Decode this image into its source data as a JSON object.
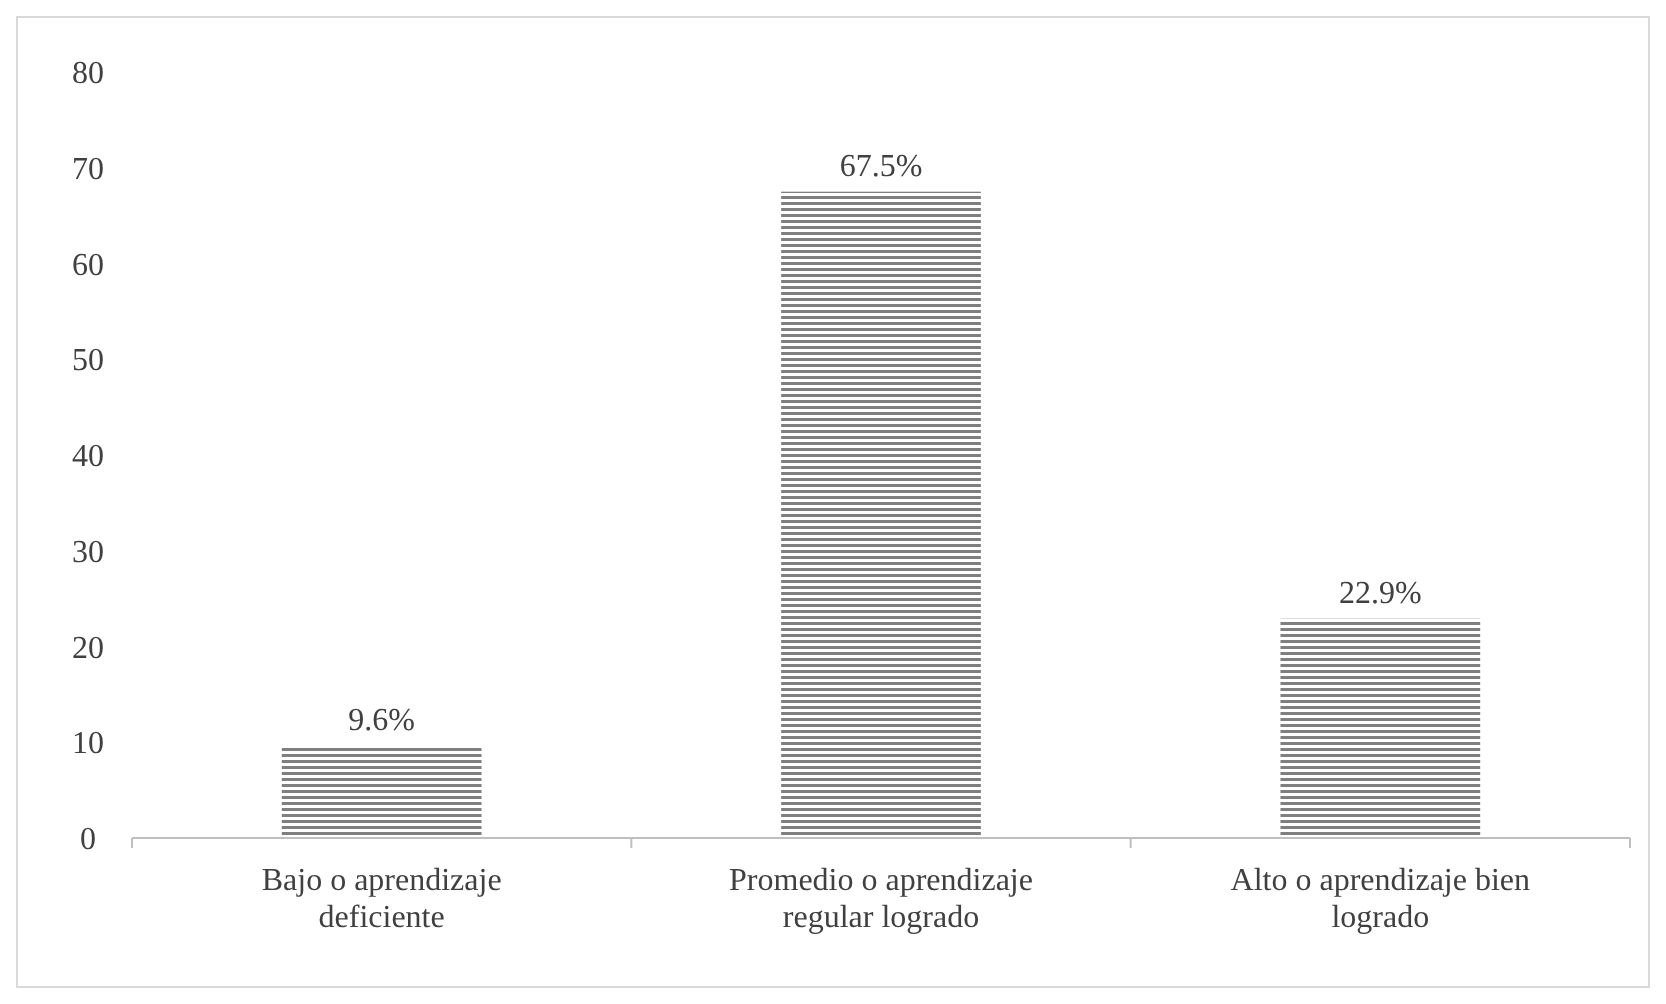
{
  "chart_data": {
    "type": "bar",
    "categories": [
      "Bajo o aprendizaje deficiente",
      "Promedio o aprendizaje regular logrado",
      "Alto o aprendizaje bien logrado"
    ],
    "values": [
      9.6,
      67.5,
      22.9
    ],
    "value_labels": [
      "9.6%",
      "67.5%",
      "22.9%"
    ],
    "color": "#7f7f7f",
    "ylim": [
      0,
      80
    ],
    "yticks": [
      0,
      10,
      20,
      30,
      40,
      50,
      60,
      70,
      80
    ],
    "grid": false
  }
}
